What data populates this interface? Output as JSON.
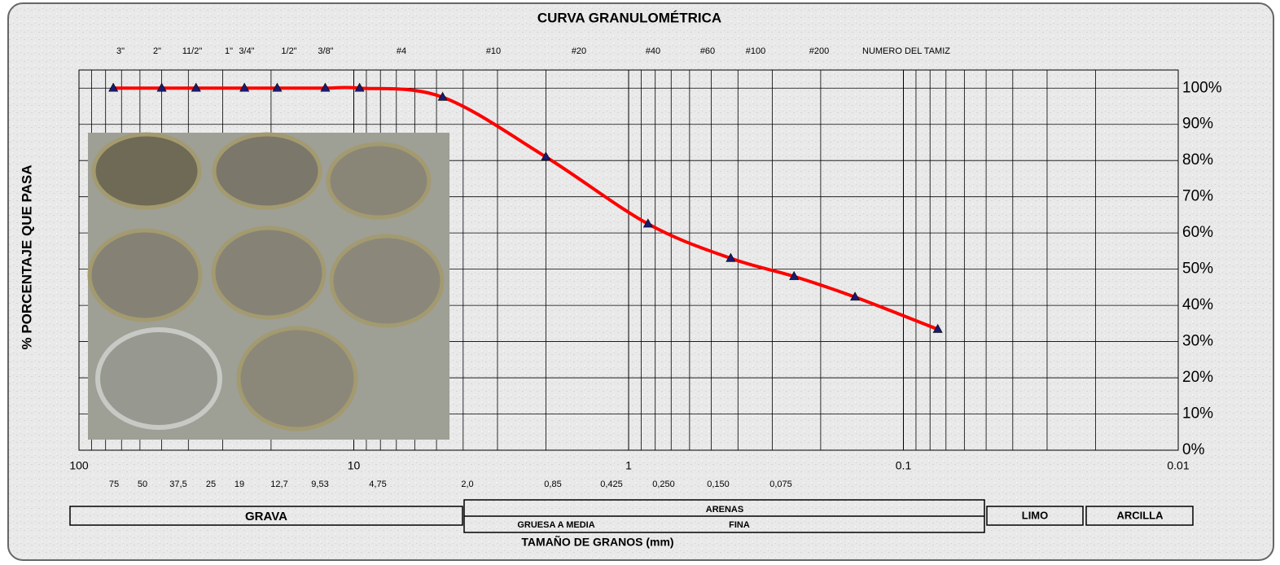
{
  "chart_data": {
    "type": "line",
    "title": "CURVA GRANULOMÉTRICA",
    "x_label": "TAMAÑO DE GRANOS (mm)",
    "y_label": "% PORCENTAJE QUE PASA",
    "x": [
      75,
      50,
      37.5,
      25,
      19,
      12.7,
      9.53,
      4.75,
      2.0,
      0.85,
      0.425,
      0.25,
      0.15,
      0.075
    ],
    "series": [
      {
        "color": "#ff0000",
        "marker_color": "#1a1a6e",
        "values": [
          100,
          100,
          100,
          100,
          100,
          100,
          100,
          97.5,
          81,
          62.5,
          53,
          48,
          42.3,
          33.4
        ]
      }
    ],
    "xlim": [
      100,
      0.01
    ],
    "x_log": true,
    "xticks": [
      100,
      10,
      1,
      0.1,
      0.01
    ],
    "ylim": [
      0,
      105
    ],
    "yticks": [
      {
        "value": 0,
        "label": "0%"
      },
      {
        "value": 10,
        "label": "10%"
      },
      {
        "value": 20,
        "label": "20%"
      },
      {
        "value": 30,
        "label": "30%"
      },
      {
        "value": 40,
        "label": "40%"
      },
      {
        "value": 50,
        "label": "50%"
      },
      {
        "value": 60,
        "label": "60%"
      },
      {
        "value": 70,
        "label": "70%"
      },
      {
        "value": 80,
        "label": "80%"
      },
      {
        "value": 90,
        "label": "90%"
      },
      {
        "value": 100,
        "label": "100%"
      }
    ],
    "grid": true,
    "sieve_labels": [
      "3\"",
      "2\"",
      "11/2\"",
      "1\"",
      "3/4\"",
      "1/2\"",
      "3/8\"",
      "#4",
      "#10",
      "#20",
      "#40",
      "#60",
      "#100",
      "#200"
    ],
    "sieve_header": "NUMERO DEL TAMIZ",
    "size_labels": [
      "75",
      "50",
      "37,5",
      "25",
      "19",
      "12,7",
      "9,53",
      "4,75",
      "2,0",
      "0,85",
      "0,425",
      "0,250",
      "0,150",
      "0,075"
    ],
    "soil_classes": {
      "grava": "GRAVA",
      "arenas": "ARENAS",
      "gruesa": "GRUESA A MEDIA",
      "fina": "FINA",
      "limo": "LIMO",
      "arcilla": "ARCILLA"
    }
  }
}
